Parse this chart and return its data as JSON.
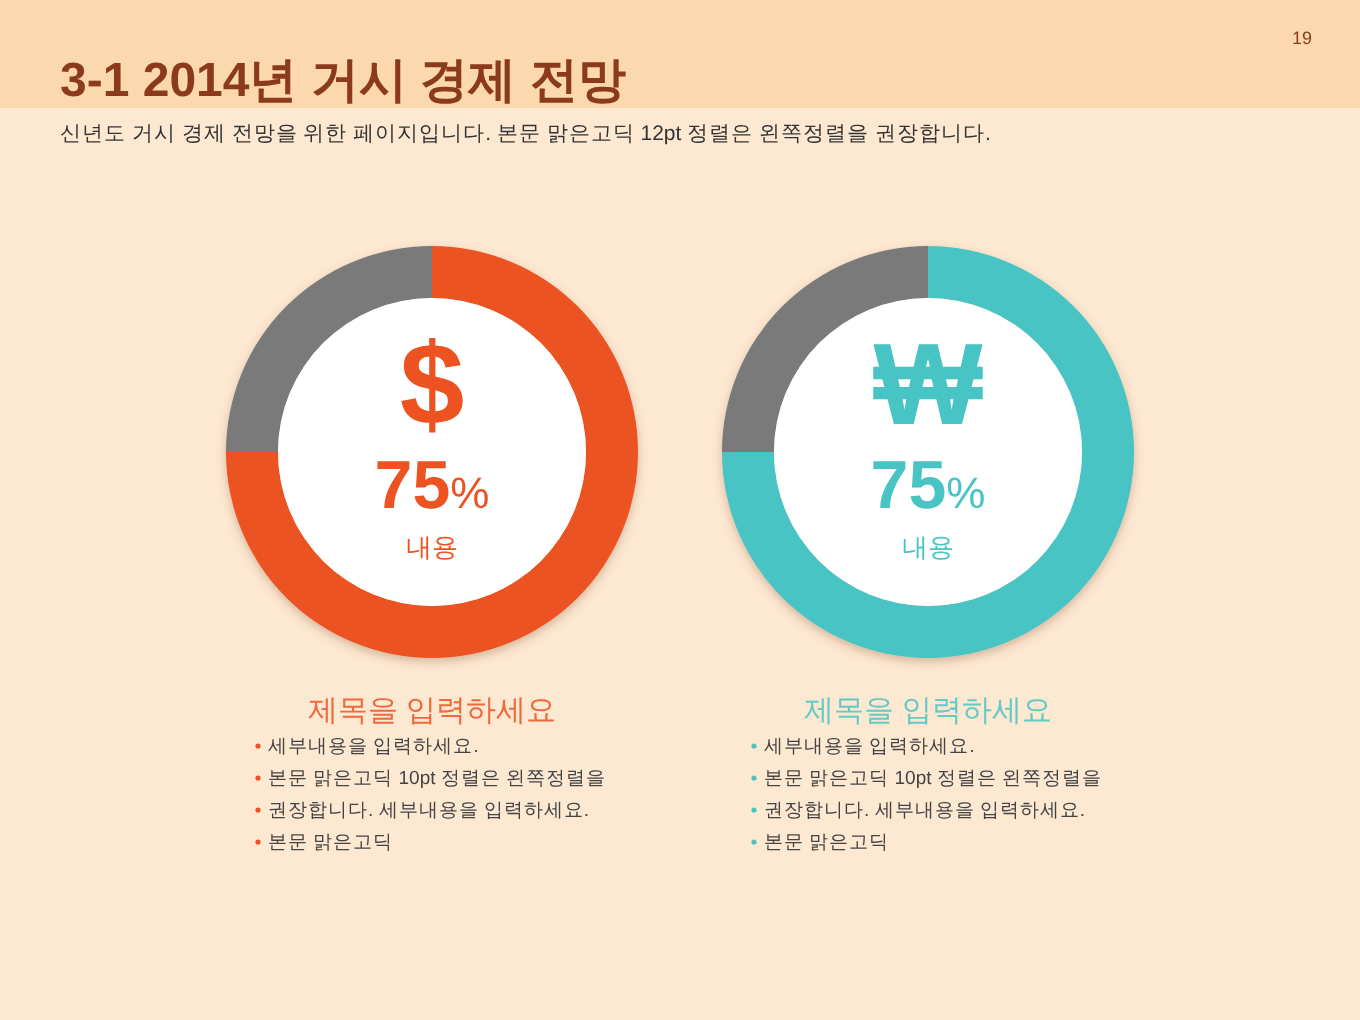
{
  "chart_data": [
    {
      "type": "other",
      "title": "3-1 2014년 거시 경제 전망",
      "subtitle": "신년도 거시 경제 전망을 위한 페이지입니다. 본문 맑은고딕 12pt 정렬은 왼쪽정렬을 권장합니다.",
      "annotations": [
        "19"
      ]
    },
    {
      "type": "donut",
      "title": "제목을 입력하세요",
      "categories": [
        null,
        null
      ],
      "values": [
        75,
        25
      ],
      "colors": [
        "#ec5320",
        "#7a7a7a"
      ],
      "value_labels": [
        "75%",
        null
      ],
      "annotations": [
        "$",
        "내용",
        "세부내용을 입력하세요.",
        "본문 맑은고딕 10pt 정렬은 왼쪽정렬을",
        "권장합니다. 세부내용을 입력하세요.",
        "본문 맑은고딕"
      ]
    },
    {
      "type": "donut",
      "title": "제목을 입력하세요",
      "categories": [
        null,
        null
      ],
      "values": [
        75,
        25
      ],
      "colors": [
        "#48c4c4",
        "#7a7a7a"
      ],
      "value_labels": [
        "75%",
        null
      ],
      "annotations": [
        "₩",
        "내용",
        "세부내용을 입력하세요.",
        "본문 맑은고딕 10pt 정렬은 왼쪽정렬을",
        "권장합니다. 세부내용을 입력하세요.",
        "본문 맑은고딕"
      ]
    }
  ]
}
